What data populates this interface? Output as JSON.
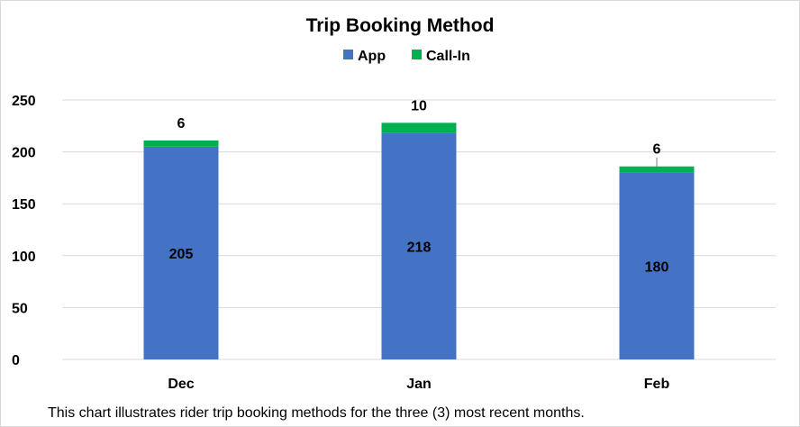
{
  "chart_data": {
    "type": "bar",
    "stacked": true,
    "title": "Trip Booking Method",
    "categories": [
      "Dec",
      "Jan",
      "Feb"
    ],
    "series": [
      {
        "name": "App",
        "values": [
          205,
          218,
          180
        ],
        "color": "#4472C4"
      },
      {
        "name": "Call-In",
        "values": [
          6,
          10,
          6
        ],
        "color": "#00B050"
      }
    ],
    "y_ticks": [
      0,
      50,
      100,
      150,
      200,
      250
    ],
    "ylim": [
      0,
      250
    ],
    "grid": true,
    "legend": "top"
  },
  "caption": "This chart illustrates rider trip booking methods for the three (3) most recent months."
}
